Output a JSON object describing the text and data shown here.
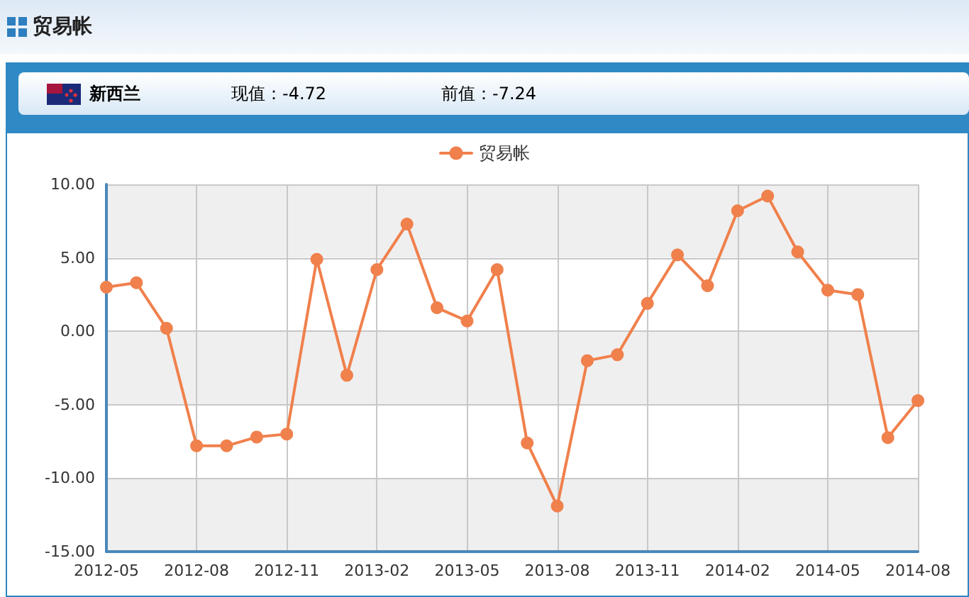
{
  "chart_data": {
    "type": "line",
    "title": "贸易帐",
    "annotations": [
      "新西兰",
      "现值：-4.72",
      "前值：-7.24"
    ],
    "categories": [
      "2012-05",
      null,
      null,
      "2012-08",
      null,
      null,
      "2012-11",
      null,
      null,
      "2013-02",
      null,
      null,
      "2013-05",
      null,
      null,
      "2013-08",
      null,
      null,
      "2013-11",
      null,
      null,
      "2014-02",
      null,
      null,
      "2014-05",
      null,
      null,
      "2014-08"
    ],
    "series": [
      {
        "name": "贸易帐",
        "color": "#f0804c",
        "values": [
          3.0,
          3.3,
          0.2,
          -7.8,
          -7.8,
          -7.2,
          -7.0,
          4.9,
          -3.0,
          4.2,
          7.3,
          1.6,
          0.7,
          4.2,
          -7.6,
          -11.9,
          -2.0,
          -1.6,
          1.9,
          5.2,
          3.1,
          8.2,
          9.2,
          5.4,
          2.8,
          2.5,
          -7.24,
          -4.72
        ]
      }
    ],
    "ylim": [
      -15,
      10
    ],
    "yticks": [
      {
        "value": -15,
        "label": "-15.00"
      },
      {
        "value": -10,
        "label": "-10.00"
      },
      {
        "value": -5,
        "label": "-5.00"
      },
      {
        "value": 0,
        "label": "0.00"
      },
      {
        "value": 5,
        "label": "5.00"
      },
      {
        "value": 10,
        "label": "10.00"
      }
    ],
    "grid": true,
    "legend": "top",
    "marker": "circle",
    "line_style": "solid"
  }
}
